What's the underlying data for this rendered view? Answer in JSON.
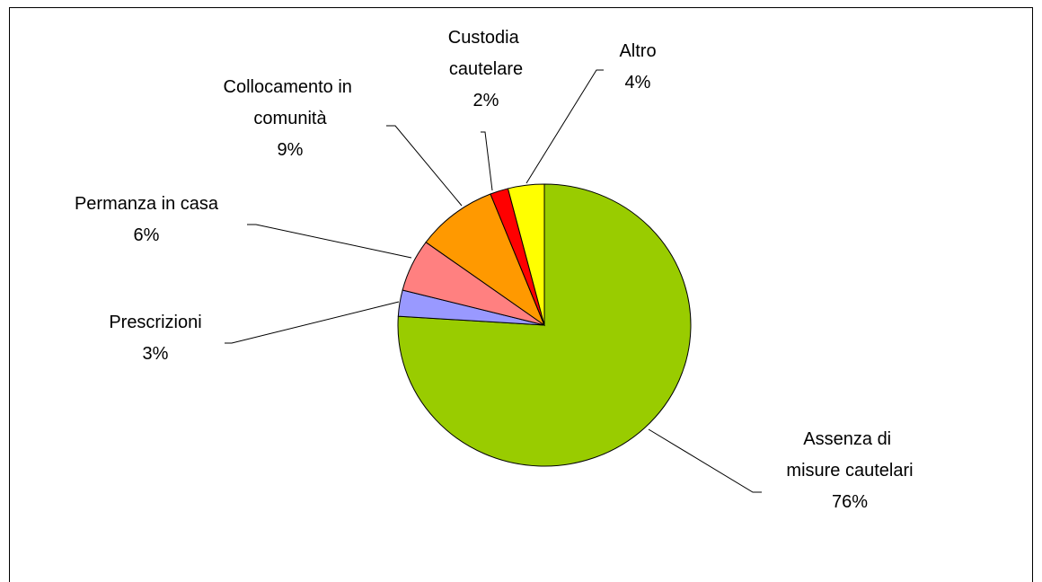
{
  "chart_data": {
    "type": "pie",
    "categories": [
      "Assenza di misure cautelari",
      "Prescrizioni",
      "Permanza in casa",
      "Collocamento in comunità",
      "Custodia cautelare",
      "Altro"
    ],
    "values": [
      76,
      3,
      6,
      9,
      2,
      4
    ],
    "value_labels": [
      "76%",
      "3%",
      "6%",
      "9%",
      "2%",
      "4%"
    ],
    "colors": [
      "#99cc00",
      "#9999ff",
      "#ff8080",
      "#ff9900",
      "#ff0000",
      "#ffff00"
    ]
  }
}
